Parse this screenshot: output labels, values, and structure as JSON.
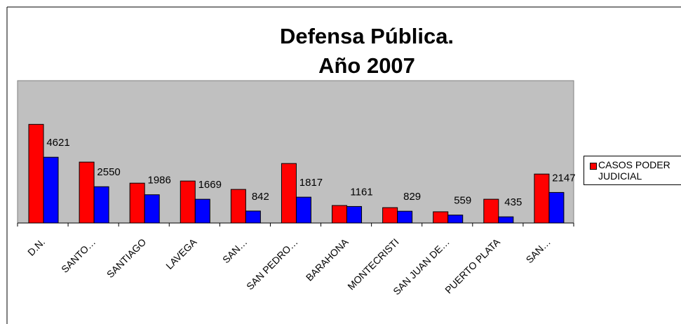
{
  "chart_data": {
    "type": "bar",
    "title": "Defensa Pública.",
    "subtitle": "Año 2007",
    "categories": [
      "D.N.",
      "SANTO…",
      "SANTIAGO",
      "LAVEGA",
      "SAN…",
      "SAN PEDRO…",
      "BARAHONA",
      "MONTECRISTI",
      "SAN JUAN DE…",
      "PUERTO PLATA",
      "SAN…"
    ],
    "series": [
      {
        "name": "CASOS PODER JUDICIAL",
        "color": "#ff0000",
        "values": [
          6930,
          4280,
          2800,
          2950,
          2360,
          4180,
          1230,
          1080,
          790,
          1670,
          3440
        ]
      },
      {
        "color": "#0000ff",
        "values": [
          4621,
          2550,
          1986,
          1669,
          842,
          1817,
          1161,
          829,
          559,
          435,
          2147
        ]
      }
    ],
    "ylim": [
      0,
      10000
    ]
  }
}
